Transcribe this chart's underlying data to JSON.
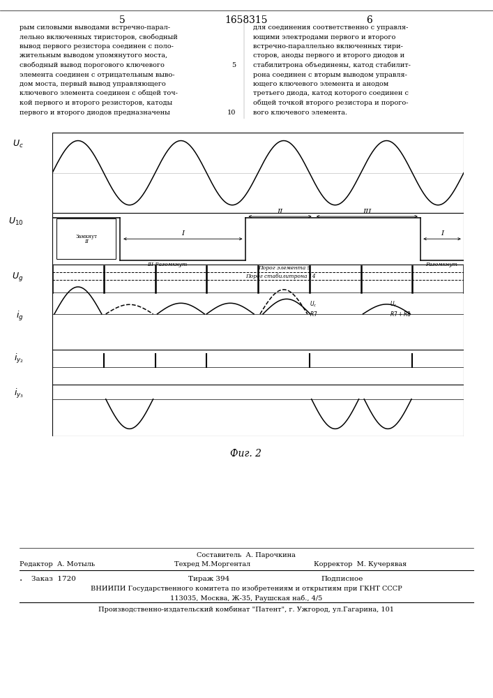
{
  "patent_num": "1658315",
  "page_left": "5",
  "page_right": "6",
  "fig_label": "Фиг. 2",
  "left_text_lines": [
    "рым силовыми выводами встречно-парал-",
    "лельно включенных тиристоров, свободный",
    "вывод первого резистора соединен с поло-",
    "жительным выводом упомянутого моста,",
    "свободный вывод порогового ключевого",
    "элемента соединен с отрицательным выво-",
    "дом моста, первый вывод управляющего",
    "ключевого элемента соединен с общей точ-",
    "кой первого и второго резисторов, катоды",
    "первого и второго диодов предназначены"
  ],
  "right_text_lines": [
    "для соединения соответственно с управля-",
    "ющими электродами первого и второго",
    "встречно-параллельно включенных тири-",
    "сторов, аноды первого и второго диодов и",
    "стабилитрона объединены, катод стабилит-",
    "рона соединен с вторым выводом управля-",
    "ющего ключевого элемента и анодом",
    "третьего диода, катод которого соединен с",
    "общей точкой второго резистора и порого-",
    "вого ключевого элемента."
  ],
  "linenum_5": "5",
  "linenum_10": "10"
}
